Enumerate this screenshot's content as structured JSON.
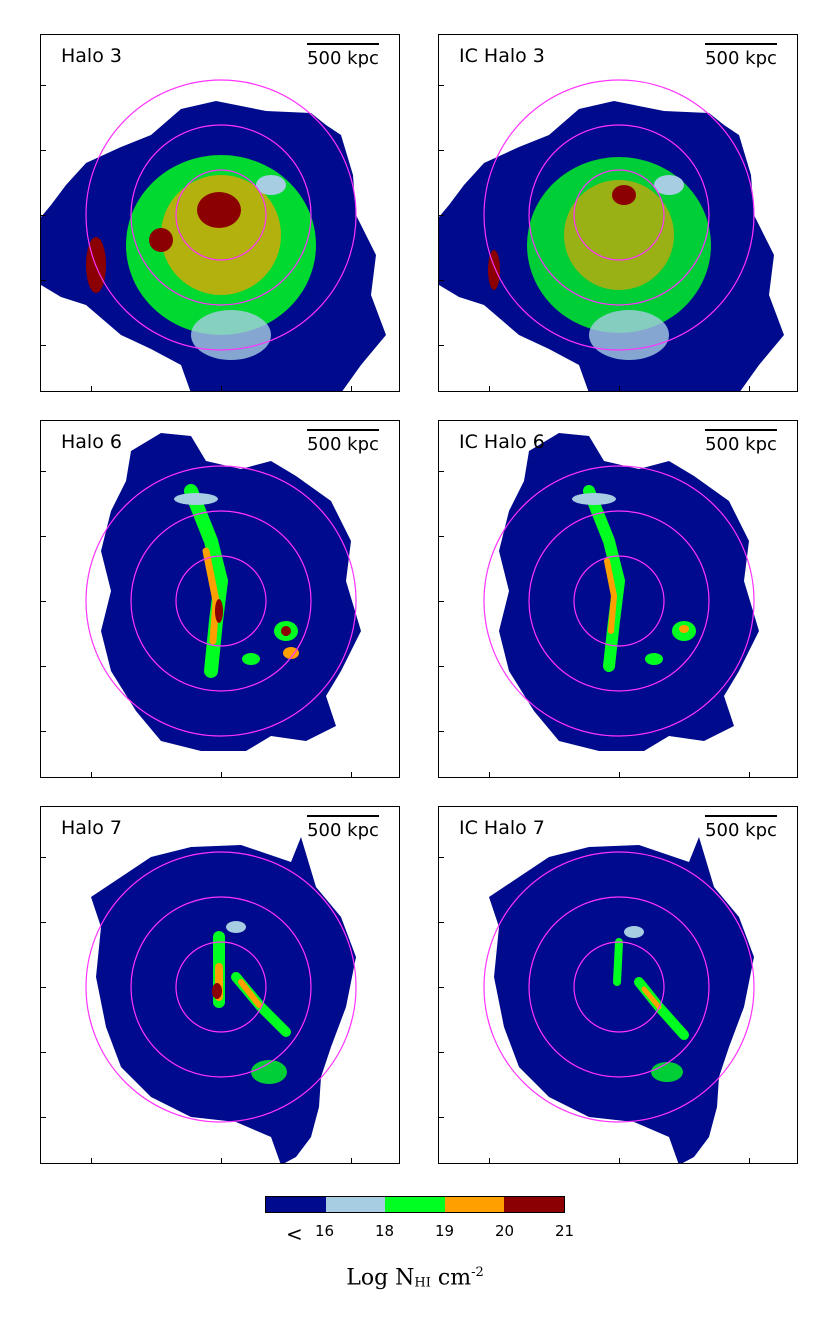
{
  "panels": [
    {
      "label": "Halo 3",
      "scale": "500 kpc"
    },
    {
      "label": "IC Halo 3",
      "scale": "500 kpc"
    },
    {
      "label": "Halo 6",
      "scale": "500 kpc"
    },
    {
      "label": "IC Halo 6",
      "scale": "500 kpc"
    },
    {
      "label": "Halo 7",
      "scale": "500 kpc"
    },
    {
      "label": "IC Halo 7",
      "scale": "500 kpc"
    }
  ],
  "colorbar": {
    "colors": [
      "#000a8c",
      "#a6cde2",
      "#00ff20",
      "#ff9f00",
      "#8b0000"
    ],
    "labels": [
      "<",
      "16",
      "18",
      "19",
      "20",
      "21"
    ],
    "title_main": "Log N",
    "title_sub": "HI",
    "title_unit": " cm",
    "title_sup": "-2"
  },
  "ring_color": "#ff33ff"
}
